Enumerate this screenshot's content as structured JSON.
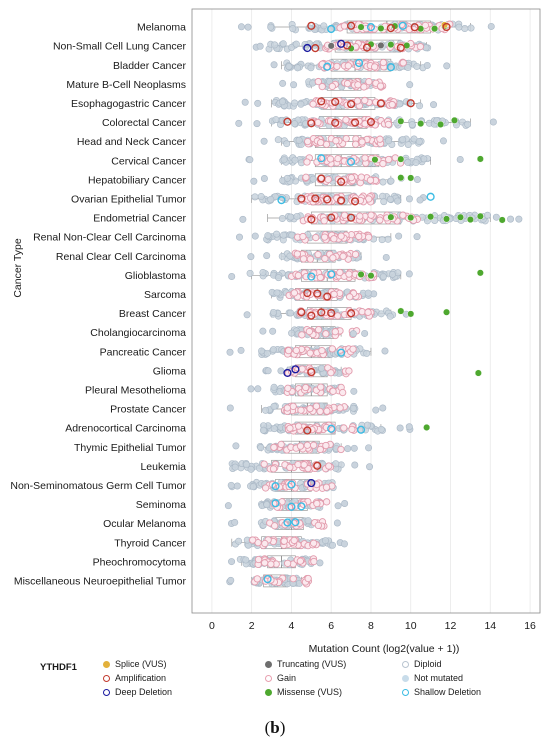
{
  "chart_data": {
    "type": "scatter",
    "xlabel": "Mutation Count (log2(value + 1))",
    "ylabel": "Cancer Type",
    "xlim": [
      -1,
      16.5
    ],
    "x_ticks": [
      0,
      2,
      4,
      6,
      8,
      10,
      12,
      14,
      16
    ],
    "grid": "vertical",
    "legend_position": "bottom",
    "categories": [
      "Melanoma",
      "Non-Small Cell Lung Cancer",
      "Bladder Cancer",
      "Mature B-Cell Neoplasms",
      "Esophagogastric Cancer",
      "Colorectal Cancer",
      "Head and Neck Cancer",
      "Cervical Cancer",
      "Hepatobiliary Cancer",
      "Ovarian Epithelial Tumor",
      "Endometrial Cancer",
      "Renal Non-Clear Cell Carcinoma",
      "Renal Clear Cell Carcinoma",
      "Glioblastoma",
      "Sarcoma",
      "Breast Cancer",
      "Cholangiocarcinoma",
      "Pancreatic Cancer",
      "Glioma",
      "Pleural Mesothelioma",
      "Prostate Cancer",
      "Adrenocortical Carcinoma",
      "Thymic Epithelial Tumor",
      "Leukemia",
      "Non-Seminomatous Germ Cell Tumor",
      "Seminoma",
      "Ocular Melanoma",
      "Thyroid Cancer",
      "Pheochromocytoma",
      "Miscellaneous Neuroepithelial Tumor"
    ],
    "box_stats": [
      {
        "lw": 3.0,
        "q1": 6.8,
        "med": 8.8,
        "q3": 11.0,
        "uw": 13.0
      },
      {
        "lw": 3.0,
        "q1": 6.2,
        "med": 7.8,
        "q3": 9.5,
        "uw": 10.8
      },
      {
        "lw": 3.5,
        "q1": 6.0,
        "med": 7.2,
        "q3": 9.0,
        "uw": 10.5
      },
      {
        "lw": 5.0,
        "q1": 5.8,
        "med": 6.6,
        "q3": 7.5,
        "uw": 8.5
      },
      {
        "lw": 3.0,
        "q1": 5.5,
        "med": 6.5,
        "q3": 8.2,
        "uw": 10.5
      },
      {
        "lw": 3.0,
        "q1": 5.4,
        "med": 6.2,
        "q3": 7.8,
        "uw": 13.0
      },
      {
        "lw": 3.5,
        "q1": 5.2,
        "med": 6.3,
        "q3": 7.5,
        "uw": 10.5
      },
      {
        "lw": 3.5,
        "q1": 5.2,
        "med": 6.5,
        "q3": 8.4,
        "uw": 11.0
      },
      {
        "lw": 3.5,
        "q1": 5.2,
        "med": 6.2,
        "q3": 7.2,
        "uw": 9.0
      },
      {
        "lw": 2.0,
        "q1": 5.0,
        "med": 6.0,
        "q3": 7.0,
        "uw": 9.5
      },
      {
        "lw": 2.8,
        "q1": 5.0,
        "med": 6.5,
        "q3": 9.5,
        "uw": 14.0
      },
      {
        "lw": 2.8,
        "q1": 4.8,
        "med": 5.8,
        "q3": 6.8,
        "uw": 9.0
      },
      {
        "lw": 3.5,
        "q1": 4.5,
        "med": 5.3,
        "q3": 6.2,
        "uw": 7.5
      },
      {
        "lw": 2.0,
        "q1": 4.5,
        "med": 5.8,
        "q3": 7.2,
        "uw": 9.5
      },
      {
        "lw": 3.0,
        "q1": 4.2,
        "med": 5.3,
        "q3": 6.3,
        "uw": 7.5
      },
      {
        "lw": 3.0,
        "q1": 4.8,
        "med": 5.5,
        "q3": 7.0,
        "uw": 9.0
      },
      {
        "lw": 4.0,
        "q1": 5.0,
        "med": 5.6,
        "q3": 6.2,
        "uw": 6.5
      },
      {
        "lw": 2.5,
        "q1": 4.2,
        "med": 5.0,
        "q3": 6.0,
        "uw": 8.0
      },
      {
        "lw": 3.8,
        "q1": 4.2,
        "med": 5.0,
        "q3": 5.8,
        "uw": 6.5
      },
      {
        "lw": 3.2,
        "q1": 4.2,
        "med": 5.0,
        "q3": 5.8,
        "uw": 6.5
      },
      {
        "lw": 2.5,
        "q1": 4.0,
        "med": 4.8,
        "q3": 5.8,
        "uw": 7.2
      },
      {
        "lw": 2.5,
        "q1": 4.2,
        "med": 5.2,
        "q3": 6.2,
        "uw": 8.5
      },
      {
        "lw": 2.5,
        "q1": 3.5,
        "med": 4.4,
        "q3": 5.4,
        "uw": 6.5
      },
      {
        "lw": 1.0,
        "q1": 3.0,
        "med": 4.0,
        "q3": 5.0,
        "uw": 6.5
      },
      {
        "lw": 2.0,
        "q1": 3.2,
        "med": 4.0,
        "q3": 5.0,
        "uw": 6.0
      },
      {
        "lw": 2.5,
        "q1": 3.5,
        "med": 4.0,
        "q3": 4.8,
        "uw": 5.5
      },
      {
        "lw": 2.5,
        "q1": 3.2,
        "med": 4.0,
        "q3": 4.6,
        "uw": 5.0
      },
      {
        "lw": 1.0,
        "q1": 2.5,
        "med": 3.5,
        "q3": 4.5,
        "uw": 6.0
      },
      {
        "lw": 1.5,
        "q1": 2.8,
        "med": 3.5,
        "q3": 4.2,
        "uw": 5.0
      },
      {
        "lw": 2.0,
        "q1": 2.6,
        "med": 3.0,
        "q3": 3.8,
        "uw": 4.5
      }
    ],
    "highlights": [
      {
        "category": "Melanoma",
        "x": [
          7.5,
          8.5,
          9.2,
          10.5,
          11.2,
          11.7
        ],
        "type": "Missense (VUS)"
      },
      {
        "category": "Non-Small Cell Lung Cancer",
        "x": [
          7.0,
          8.0,
          9.0,
          9.8
        ],
        "type": "Missense (VUS)"
      },
      {
        "category": "Colorectal Cancer",
        "x": [
          9.5,
          10.5,
          11.5,
          12.2
        ],
        "type": "Missense (VUS)"
      },
      {
        "category": "Cervical Cancer",
        "x": [
          8.2,
          9.5,
          13.5
        ],
        "type": "Missense (VUS)"
      },
      {
        "category": "Hepatobiliary Cancer",
        "x": [
          9.5,
          10.0
        ],
        "type": "Missense (VUS)"
      },
      {
        "category": "Endometrial Cancer",
        "x": [
          9.0,
          10.0,
          11.0,
          11.8,
          12.5,
          13.0,
          13.5,
          14.6
        ],
        "type": "Missense (VUS)"
      },
      {
        "category": "Glioblastoma",
        "x": [
          7.5,
          8.0,
          13.5
        ],
        "type": "Missense (VUS)"
      },
      {
        "category": "Breast Cancer",
        "x": [
          9.5,
          10.0,
          11.8
        ],
        "type": "Missense (VUS)"
      },
      {
        "category": "Glioma",
        "x": [
          13.4
        ],
        "type": "Missense (VUS)"
      },
      {
        "category": "Adrenocortical Carcinoma",
        "x": [
          10.8
        ],
        "type": "Missense (VUS)"
      },
      {
        "category": "Melanoma",
        "x": [
          11.7
        ],
        "type": "Splice (VUS)"
      },
      {
        "category": "Non-Small Cell Lung Cancer",
        "x": [
          6.0,
          8.5
        ],
        "type": "Truncating (VUS)"
      },
      {
        "category": "Melanoma",
        "x": [
          5.0,
          7.0,
          9.0,
          10.2,
          11.8
        ],
        "type": "Amplification"
      },
      {
        "category": "Non-Small Cell Lung Cancer",
        "x": [
          5.2,
          6.8,
          7.8,
          9.5
        ],
        "type": "Amplification"
      },
      {
        "category": "Esophagogastric Cancer",
        "x": [
          5.5,
          6.2,
          7.0,
          8.5,
          10.0
        ],
        "type": "Amplification"
      },
      {
        "category": "Colorectal Cancer",
        "x": [
          3.8,
          5.0,
          6.2,
          7.2,
          8.0
        ],
        "type": "Amplification"
      },
      {
        "category": "Hepatobiliary Cancer",
        "x": [
          5.5,
          6.5
        ],
        "type": "Amplification"
      },
      {
        "category": "Ovarian Epithelial Tumor",
        "x": [
          4.5,
          5.2,
          5.8,
          6.5,
          7.2
        ],
        "type": "Amplification"
      },
      {
        "category": "Endometrial Cancer",
        "x": [
          5.0,
          6.0,
          7.0
        ],
        "type": "Amplification"
      },
      {
        "category": "Sarcoma",
        "x": [
          4.8,
          5.3,
          5.8
        ],
        "type": "Amplification"
      },
      {
        "category": "Breast Cancer",
        "x": [
          4.5,
          5.0,
          5.5,
          6.0,
          7.0
        ],
        "type": "Amplification"
      },
      {
        "category": "Glioma",
        "x": [
          5.0
        ],
        "type": "Amplification"
      },
      {
        "category": "Adrenocortical Carcinoma",
        "x": [
          4.8
        ],
        "type": "Amplification"
      },
      {
        "category": "Leukemia",
        "x": [
          5.3
        ],
        "type": "Amplification"
      },
      {
        "category": "Non-Small Cell Lung Cancer",
        "x": [
          4.8,
          6.5
        ],
        "type": "Deep Deletion"
      },
      {
        "category": "Glioma",
        "x": [
          3.8,
          4.2
        ],
        "type": "Deep Deletion"
      },
      {
        "category": "Non-Seminomatous Germ Cell Tumor",
        "x": [
          5.0
        ],
        "type": "Deep Deletion"
      },
      {
        "category": "Melanoma",
        "x": [
          6.0,
          8.0,
          9.6
        ],
        "type": "Shallow Deletion"
      },
      {
        "category": "Bladder Cancer",
        "x": [
          5.8,
          7.4,
          9.0
        ],
        "type": "Shallow Deletion"
      },
      {
        "category": "Cervical Cancer",
        "x": [
          5.5,
          7.0
        ],
        "type": "Shallow Deletion"
      },
      {
        "category": "Ovarian Epithelial Tumor",
        "x": [
          11.0,
          3.5
        ],
        "type": "Shallow Deletion"
      },
      {
        "category": "Glioblastoma",
        "x": [
          5.0,
          6.0
        ],
        "type": "Shallow Deletion"
      },
      {
        "category": "Pancreatic Cancer",
        "x": [
          6.5
        ],
        "type": "Shallow Deletion"
      },
      {
        "category": "Adrenocortical Carcinoma",
        "x": [
          6.0,
          7.5
        ],
        "type": "Shallow Deletion"
      },
      {
        "category": "Non-Seminomatous Germ Cell Tumor",
        "x": [
          3.2,
          4.0
        ],
        "type": "Shallow Deletion"
      },
      {
        "category": "Seminoma",
        "x": [
          3.2,
          4.0,
          4.5
        ],
        "type": "Shallow Deletion"
      },
      {
        "category": "Ocular Melanoma",
        "x": [
          3.8,
          4.2
        ],
        "type": "Shallow Deletion"
      },
      {
        "category": "Miscellaneous Neuroepithelial Tumor",
        "x": [
          2.8
        ],
        "type": "Shallow Deletion"
      }
    ],
    "legend": {
      "title": "YTHDF1",
      "items": [
        {
          "label": "Splice (VUS)",
          "color": "#e3b13b",
          "style": "filled"
        },
        {
          "label": "Amplification",
          "color": "#c23a2e",
          "style": "ring"
        },
        {
          "label": "Deep Deletion",
          "color": "#1a1aa0",
          "style": "ring"
        },
        {
          "label": "Truncating (VUS)",
          "color": "#6e6e6e",
          "style": "filled"
        },
        {
          "label": "Gain",
          "color": "#e8a0b0",
          "style": "ring"
        },
        {
          "label": "Missense (VUS)",
          "color": "#4ea82f",
          "style": "filled"
        },
        {
          "label": "Diploid",
          "color": "#b8c4d0",
          "style": "ring"
        },
        {
          "label": "Not mutated",
          "color": "#c8dcea",
          "style": "filled"
        },
        {
          "label": "Shallow Deletion",
          "color": "#3bbce4",
          "style": "ring"
        }
      ]
    }
  },
  "panel_label": "(b)"
}
